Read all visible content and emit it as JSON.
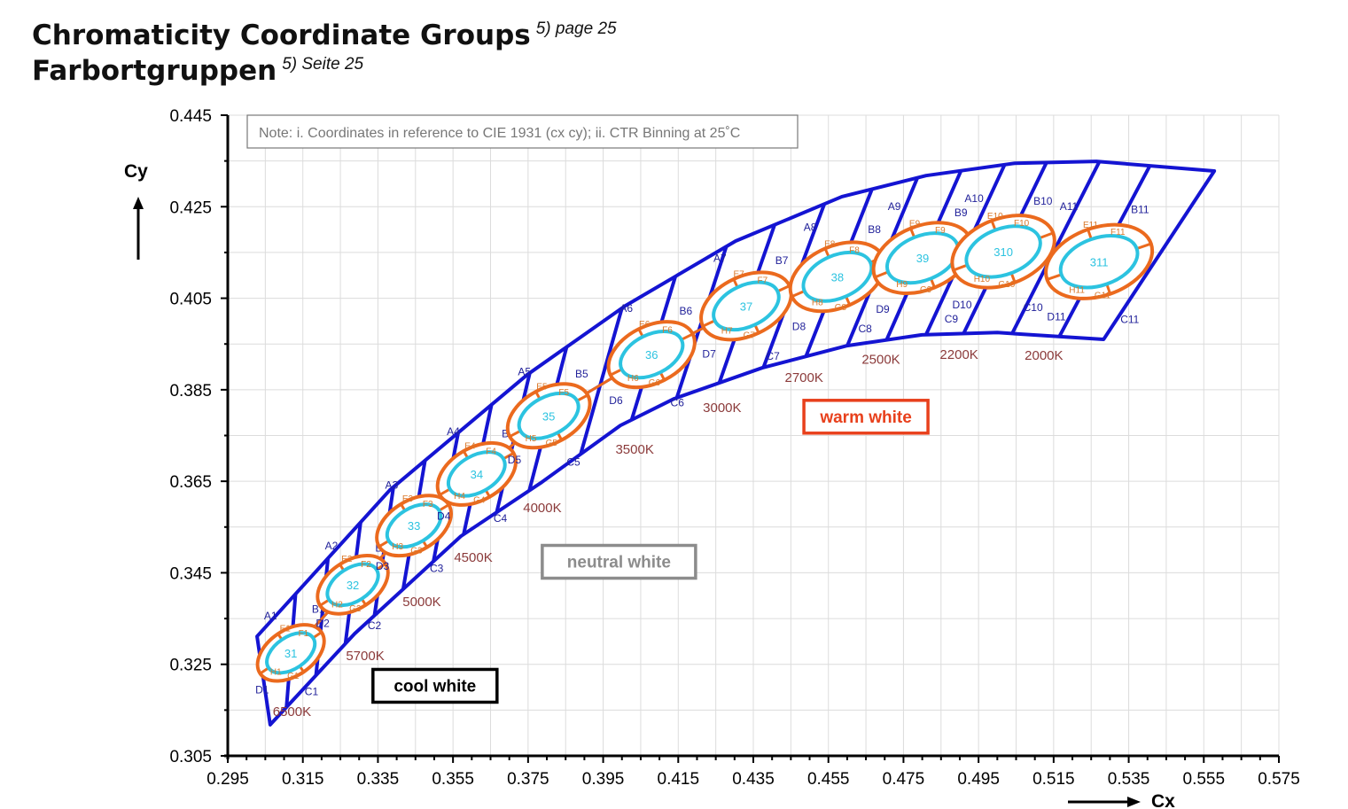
{
  "header": {
    "title_en": "Chromaticity Coordinate Groups",
    "title_en_ref": "5) page 25",
    "title_de": "Farbortgruppen",
    "title_de_ref": "5) Seite 25"
  },
  "chart_data": {
    "type": "scatter",
    "title": "Chromaticity Coordinate Groups",
    "xlabel": "Cx",
    "ylabel": "Cy",
    "xlim": [
      0.295,
      0.575
    ],
    "ylim": [
      0.305,
      0.445
    ],
    "xticks": [
      "0.295",
      "0.315",
      "0.335",
      "0.355",
      "0.375",
      "0.395",
      "0.415",
      "0.435",
      "0.455",
      "0.475",
      "0.495",
      "0.515",
      "0.535",
      "0.555",
      "0.575"
    ],
    "yticks": [
      "0.305",
      "0.325",
      "0.345",
      "0.365",
      "0.385",
      "0.405",
      "0.425",
      "0.445"
    ],
    "grid": true,
    "note": "Note: i. Coordinates in reference to CIE 1931 (cx cy); ii. CTR Binning at 25˚C",
    "outline_top": [
      [
        0.3028,
        0.3311
      ],
      [
        0.3382,
        0.3631
      ],
      [
        0.3748,
        0.3883
      ],
      [
        0.4008,
        0.4033
      ],
      [
        0.4303,
        0.4175
      ],
      [
        0.4586,
        0.4272
      ],
      [
        0.481,
        0.4318
      ],
      [
        0.5047,
        0.4345
      ],
      [
        0.5264,
        0.4349
      ],
      [
        0.5578,
        0.4328
      ]
    ],
    "outline_bottom": [
      [
        0.3063,
        0.3118
      ],
      [
        0.3288,
        0.3317
      ],
      [
        0.3571,
        0.353
      ],
      [
        0.3783,
        0.3646
      ],
      [
        0.3996,
        0.3772
      ],
      [
        0.4138,
        0.383
      ],
      [
        0.4374,
        0.3898
      ],
      [
        0.4598,
        0.3946
      ],
      [
        0.4799,
        0.397
      ],
      [
        0.5,
        0.3975
      ],
      [
        0.5283,
        0.396
      ]
    ],
    "groups": [
      {
        "id": "31",
        "center": [
          0.3118,
          0.3275
        ],
        "bins": [
          "A1",
          "B1",
          "C1",
          "D1",
          "E1",
          "F1",
          "G1",
          "H1"
        ]
      },
      {
        "id": "32",
        "center": [
          0.3283,
          0.3424
        ],
        "bins": [
          "A2",
          "B2",
          "C2",
          "D2",
          "E2",
          "F2",
          "G2",
          "H2"
        ]
      },
      {
        "id": "33",
        "center": [
          0.3446,
          0.3553
        ],
        "bins": [
          "A3",
          "B3",
          "C3",
          "D3",
          "E3",
          "F3",
          "G3",
          "H3"
        ]
      },
      {
        "id": "34",
        "center": [
          0.3613,
          0.3666
        ],
        "bins": [
          "A4",
          "B4",
          "C4",
          "D4",
          "E4",
          "F4",
          "G4",
          "H4"
        ]
      },
      {
        "id": "35",
        "center": [
          0.3805,
          0.3793
        ],
        "bins": [
          "A5",
          "B5",
          "C5",
          "D5",
          "E5",
          "F5",
          "G5",
          "H5"
        ]
      },
      {
        "id": "36",
        "center": [
          0.4079,
          0.3927
        ],
        "bins": [
          "A6",
          "B6",
          "C6",
          "D6",
          "E6",
          "F6",
          "G6",
          "H6"
        ]
      },
      {
        "id": "37",
        "center": [
          0.4331,
          0.4033
        ],
        "bins": [
          "A7",
          "B7",
          "C7",
          "D7",
          "E7",
          "F7",
          "G7",
          "H7"
        ]
      },
      {
        "id": "38",
        "center": [
          0.4574,
          0.4097
        ],
        "bins": [
          "A8",
          "B8",
          "C8",
          "D8",
          "E8",
          "F8",
          "G8",
          "H8"
        ]
      },
      {
        "id": "39",
        "center": [
          0.4801,
          0.4138
        ],
        "bins": [
          "A9",
          "B9",
          "C9",
          "D9",
          "E9",
          "F9",
          "G9",
          "H9"
        ]
      },
      {
        "id": "310",
        "center": [
          0.5016,
          0.4152
        ],
        "bins": [
          "A10",
          "B10",
          "C10",
          "D10",
          "E10",
          "F10",
          "G10",
          "H10"
        ]
      },
      {
        "id": "311",
        "center": [
          0.5271,
          0.413
        ],
        "bins": [
          "A11",
          "B11",
          "C11",
          "D11",
          "E11",
          "F11",
          "G11",
          "H11"
        ]
      }
    ],
    "cct_labels": [
      {
        "text": "6500K",
        "at": [
          0.3121,
          0.3147
        ]
      },
      {
        "text": "5700K",
        "at": [
          0.3316,
          0.3269
        ]
      },
      {
        "text": "5000K",
        "at": [
          0.3467,
          0.3387
        ]
      },
      {
        "text": "4500K",
        "at": [
          0.3604,
          0.3484
        ]
      },
      {
        "text": "4000K",
        "at": [
          0.3788,
          0.3592
        ]
      },
      {
        "text": "3500K",
        "at": [
          0.4034,
          0.372
        ]
      },
      {
        "text": "3000K",
        "at": [
          0.4267,
          0.3811
        ]
      },
      {
        "text": "2700K",
        "at": [
          0.4485,
          0.3877
        ]
      },
      {
        "text": "2500K",
        "at": [
          0.469,
          0.3917
        ]
      },
      {
        "text": "2200K",
        "at": [
          0.4898,
          0.3927
        ]
      },
      {
        "text": "2000K",
        "at": [
          0.5124,
          0.3925
        ]
      }
    ],
    "regions": [
      {
        "text": "cool white",
        "at": [
          0.3502,
          0.3204
        ],
        "color": "#000000"
      },
      {
        "text": "neutral white",
        "at": [
          0.3992,
          0.3475
        ],
        "color": "#8c8c8c"
      },
      {
        "text": "warm white",
        "at": [
          0.465,
          0.3792
        ],
        "color": "#e8401c"
      }
    ],
    "colors": {
      "outline": "#1414d2",
      "orange": "#eb6a1e",
      "cyan": "#2cc3e0",
      "bin_blue": "#22229a",
      "bin_orange": "#d9782a",
      "cct": "#8b3a3a"
    }
  }
}
